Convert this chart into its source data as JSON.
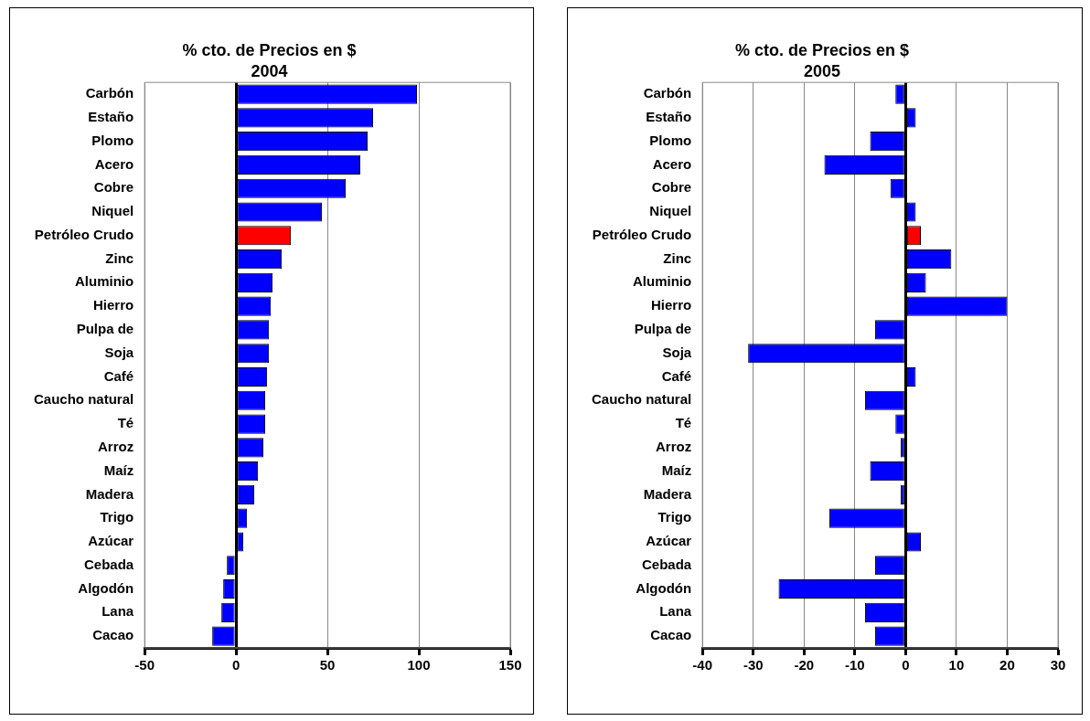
{
  "chart_data": [
    {
      "type": "bar",
      "orientation": "horizontal",
      "title": "% cto. de Precios en $",
      "subtitle": "2004",
      "categories": [
        "Carbón",
        "Estaño",
        "Plomo",
        "Acero",
        "Cobre",
        "Niquel",
        "Petróleo Crudo",
        "Zinc",
        "Aluminio",
        "Hierro",
        "Pulpa de",
        "Soja",
        "Café",
        "Caucho natural",
        "Té",
        "Arroz",
        "Maíz",
        "Madera",
        "Trigo",
        "Azúcar",
        "Cebada",
        "Algodón",
        "Lana",
        "Cacao"
      ],
      "values": [
        99,
        75,
        72,
        68,
        60,
        47,
        30,
        25,
        20,
        19,
        18,
        18,
        17,
        16,
        16,
        15,
        12,
        10,
        6,
        4,
        -5,
        -7,
        -8,
        -13
      ],
      "colors": [
        "#0000ff",
        "#0000ff",
        "#0000ff",
        "#0000ff",
        "#0000ff",
        "#0000ff",
        "#ff0000",
        "#0000ff",
        "#0000ff",
        "#0000ff",
        "#0000ff",
        "#0000ff",
        "#0000ff",
        "#0000ff",
        "#0000ff",
        "#0000ff",
        "#0000ff",
        "#0000ff",
        "#0000ff",
        "#0000ff",
        "#0000ff",
        "#0000ff",
        "#0000ff",
        "#0000ff"
      ],
      "xlim": [
        -50,
        150
      ],
      "xticks": [
        -50,
        0,
        50,
        100,
        150
      ],
      "grid": "x"
    },
    {
      "type": "bar",
      "orientation": "horizontal",
      "title": "% cto. de Precios en $",
      "subtitle": "2005",
      "categories": [
        "Carbón",
        "Estaño",
        "Plomo",
        "Acero",
        "Cobre",
        "Niquel",
        "Petróleo Crudo",
        "Zinc",
        "Aluminio",
        "Hierro",
        "Pulpa de",
        "Soja",
        "Café",
        "Caucho natural",
        "Té",
        "Arroz",
        "Maíz",
        "Madera",
        "Trigo",
        "Azúcar",
        "Cebada",
        "Algodón",
        "Lana",
        "Cacao"
      ],
      "values": [
        -2,
        2,
        -7,
        -16,
        -3,
        2,
        3,
        9,
        4,
        20,
        -6,
        -31,
        2,
        -8,
        -2,
        -1,
        -7,
        -1,
        -15,
        3,
        -6,
        -25,
        -8,
        -6
      ],
      "colors": [
        "#0000ff",
        "#0000ff",
        "#0000ff",
        "#0000ff",
        "#0000ff",
        "#0000ff",
        "#ff0000",
        "#0000ff",
        "#0000ff",
        "#0000ff",
        "#0000ff",
        "#0000ff",
        "#0000ff",
        "#0000ff",
        "#0000ff",
        "#0000ff",
        "#0000ff",
        "#0000ff",
        "#0000ff",
        "#0000ff",
        "#0000ff",
        "#0000ff",
        "#0000ff",
        "#0000ff"
      ],
      "xlim": [
        -40,
        30
      ],
      "xticks": [
        -40,
        -30,
        -20,
        -10,
        0,
        10,
        20,
        30
      ],
      "grid": "x"
    }
  ]
}
